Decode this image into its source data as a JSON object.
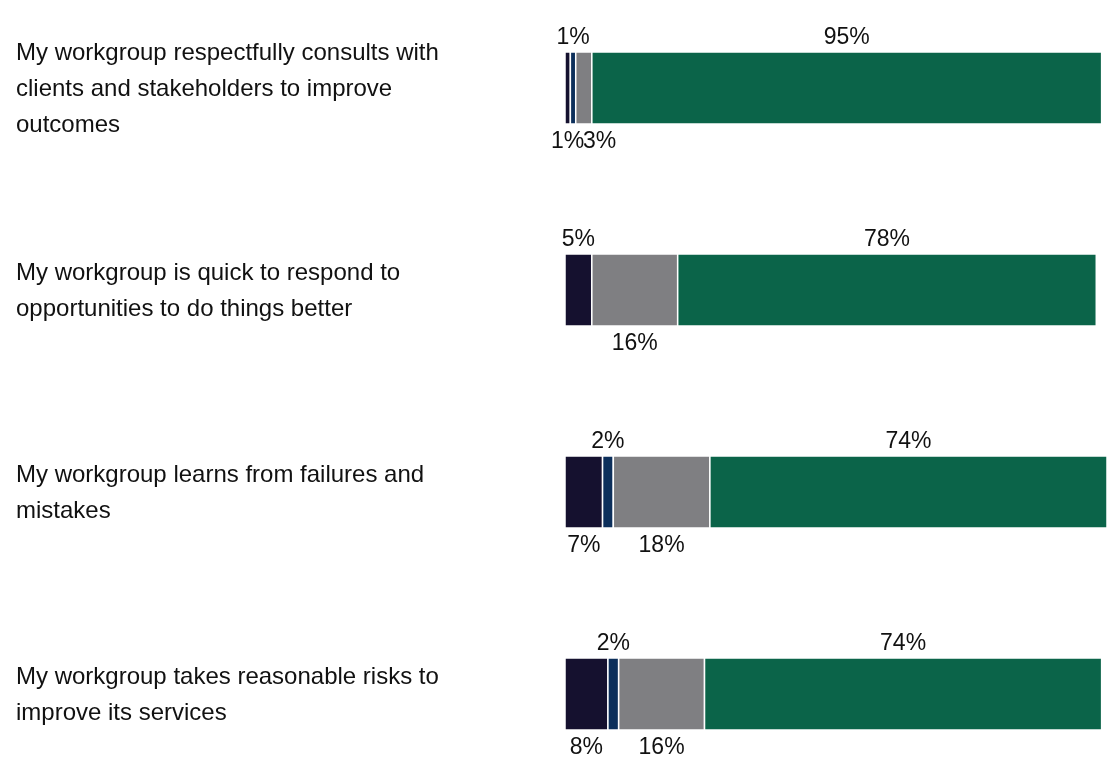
{
  "chart_data": {
    "type": "bar",
    "orientation": "horizontal",
    "stacked": true,
    "categories": [
      "My workgroup respectfully consults with clients and stakeholders to improve outcomes",
      "My workgroup is quick to respond to opportunities to do things better",
      "My workgroup learns from failures and mistakes",
      "My workgroup takes reasonable risks to improve its services"
    ],
    "series": [
      {
        "color": "#15112f",
        "values": [
          1,
          5,
          7,
          8
        ],
        "value_labels": [
          "1%",
          "5%",
          "7%",
          "8%"
        ]
      },
      {
        "color": "#0c2f5b",
        "values": [
          1,
          null,
          2,
          2
        ],
        "value_labels": [
          "1%",
          null,
          "2%",
          "2%"
        ]
      },
      {
        "color": "#7f7f82",
        "values": [
          3,
          16,
          18,
          16
        ],
        "value_labels": [
          "3%",
          "16%",
          "18%",
          "16%"
        ]
      },
      {
        "color": "#0b6449",
        "values": [
          95,
          78,
          74,
          74
        ],
        "value_labels": [
          "95%",
          "78%",
          "74%",
          "74%"
        ]
      }
    ]
  }
}
